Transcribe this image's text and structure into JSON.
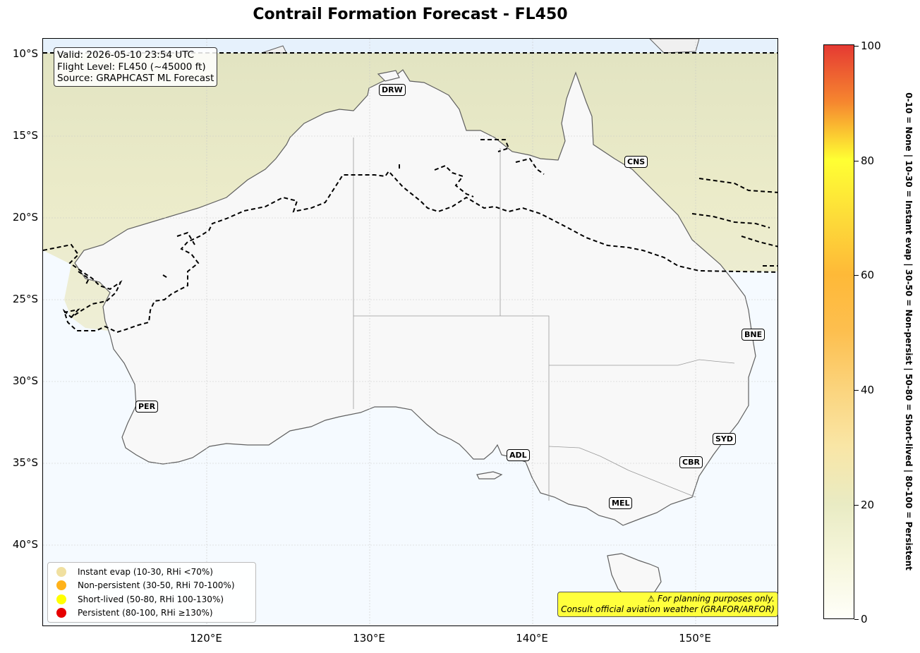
{
  "title": "Contrail Formation Forecast - FL450",
  "info": {
    "valid": "Valid: 2026-05-10 23:54 UTC",
    "flight_level": "Flight Level: FL450 (~45000 ft)",
    "source": "Source: GRAPHCAST ML Forecast"
  },
  "axes": {
    "lat_labels": [
      "10°S",
      "15°S",
      "20°S",
      "25°S",
      "30°S",
      "35°S",
      "40°S"
    ],
    "lon_labels": [
      "120°E",
      "130°E",
      "140°E",
      "150°E"
    ]
  },
  "cities": [
    {
      "code": "DRW"
    },
    {
      "code": "CNS"
    },
    {
      "code": "BNE"
    },
    {
      "code": "PER"
    },
    {
      "code": "SYD"
    },
    {
      "code": "ADL"
    },
    {
      "code": "CBR"
    },
    {
      "code": "MEL"
    }
  ],
  "legend": [
    {
      "label": "Instant evap (10-30, RHi <70%)",
      "color": "#f0e0a0"
    },
    {
      "label": "Non-persistent (30-50, RHi 70-100%)",
      "color": "#ffb21a"
    },
    {
      "label": "Short-lived (50-80, RHi 100-130%)",
      "color": "#ffff00"
    },
    {
      "label": "Persistent (80-100, RHi ≥130%)",
      "color": "#e60000"
    }
  ],
  "disclaimer": {
    "line1": "⚠ For planning purposes only.",
    "line2": "Consult official aviation weather (GRAFOR/ARFOR)"
  },
  "colorbar": {
    "ticks": [
      "0",
      "20",
      "40",
      "60",
      "80",
      "100"
    ],
    "description": "0-10 = None  |  10-30 = Instant evap  |  30-50 = Non-persist  |  50-80 = Short-lived  |  80-100 = Persistent"
  }
}
